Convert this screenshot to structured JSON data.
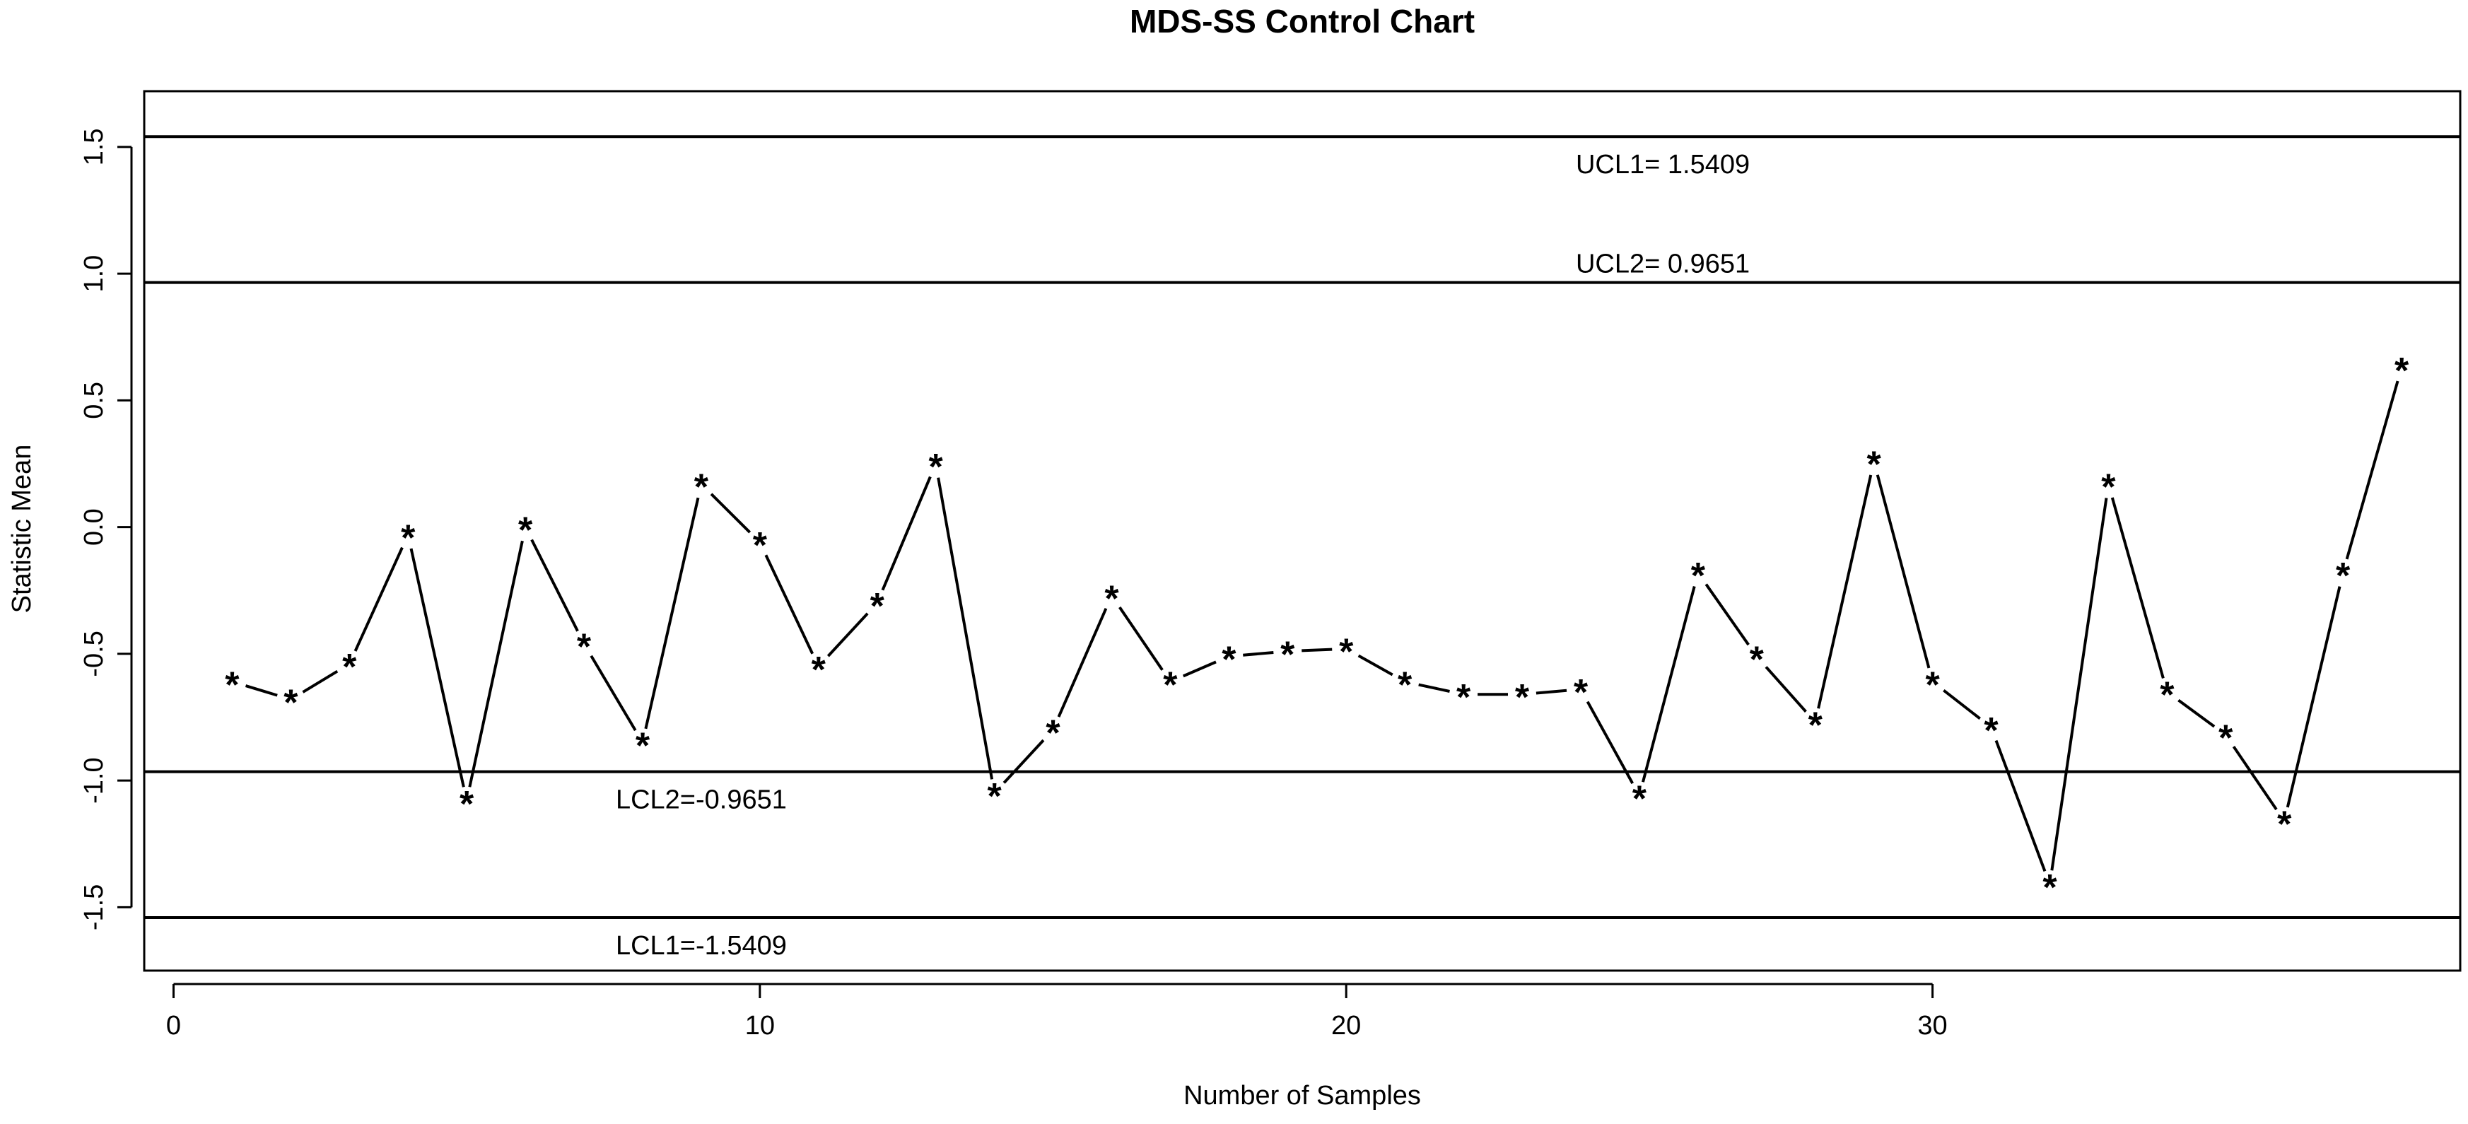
{
  "chart_data": {
    "type": "line",
    "title": "MDS-SS Control Chart",
    "xlabel": "Number of Samples",
    "ylabel": "Statistic Mean",
    "xlim": [
      -0.5,
      39
    ],
    "ylim": [
      -1.75,
      1.72
    ],
    "x_ticks": [
      0,
      10,
      20,
      30
    ],
    "y_ticks": [
      -1.5,
      -1.0,
      -0.5,
      0.0,
      0.5,
      1.0,
      1.5
    ],
    "y_tick_labels": [
      "-1.5",
      "-1.0",
      "-0.5",
      "0.0",
      "0.5",
      "1.0",
      "1.5"
    ],
    "marker": "*",
    "series": [
      {
        "x": [
          1,
          2,
          3,
          4,
          5,
          6,
          7,
          8,
          9,
          10,
          11,
          12,
          13,
          14,
          15,
          16,
          17,
          18,
          19,
          20,
          21,
          22,
          23,
          24,
          25,
          26,
          27,
          28,
          29,
          30,
          31,
          32,
          33,
          34,
          35,
          36,
          37,
          38
        ],
        "values": [
          -0.61,
          -0.68,
          -0.54,
          -0.03,
          -1.08,
          0.0,
          -0.46,
          -0.85,
          0.17,
          -0.06,
          -0.55,
          -0.3,
          0.25,
          -1.05,
          -0.8,
          -0.27,
          -0.61,
          -0.51,
          -0.49,
          -0.48,
          -0.61,
          -0.66,
          -0.66,
          -0.64,
          -1.06,
          -0.18,
          -0.51,
          -0.77,
          0.26,
          -0.61,
          -0.79,
          -1.41,
          0.17,
          -0.65,
          -0.82,
          -1.16,
          -0.18,
          0.63
        ]
      }
    ],
    "control_limits": [
      {
        "value": 1.5409,
        "label": "UCL1=  1.5409",
        "label_x": 25.4,
        "label_pos": "below"
      },
      {
        "value": 0.9651,
        "label": "UCL2= 0.9651",
        "label_x": 25.4,
        "label_pos": "above"
      },
      {
        "value": -0.9651,
        "label": "LCL2=-0.9651",
        "label_x": 9.0,
        "label_pos": "below"
      },
      {
        "value": -1.5409,
        "label": "LCL1=-1.5409",
        "label_x": 9.0,
        "label_pos": "below"
      }
    ]
  }
}
